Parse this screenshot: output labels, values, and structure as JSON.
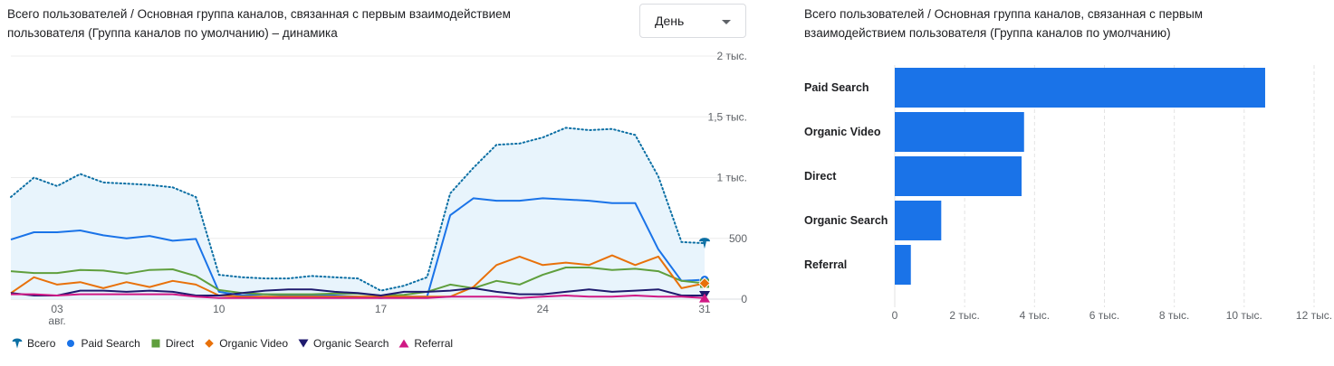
{
  "line_chart": {
    "title": "Всего пользователей / Основная группа каналов, связанная с первым взаимодействием пользователя (Группа каналов по умолчанию) – динамика",
    "granularity": {
      "selected": "День"
    }
  },
  "bar_chart": {
    "title": "Всего пользователей / Основная группа каналов, связанная с первым взаимодействием пользователя (Группа каналов по умолчанию)"
  },
  "chart_data": [
    {
      "type": "line",
      "title": "Всего пользователей / Основная группа каналов, связанная с первым взаимодействием пользователя (Группа каналов по умолчанию) – динамика",
      "x": [
        "2024-08-01",
        "2024-08-02",
        "2024-08-03",
        "2024-08-04",
        "2024-08-05",
        "2024-08-06",
        "2024-08-07",
        "2024-08-08",
        "2024-08-09",
        "2024-08-10",
        "2024-08-11",
        "2024-08-12",
        "2024-08-13",
        "2024-08-14",
        "2024-08-15",
        "2024-08-16",
        "2024-08-17",
        "2024-08-18",
        "2024-08-19",
        "2024-08-20",
        "2024-08-21",
        "2024-08-22",
        "2024-08-23",
        "2024-08-24",
        "2024-08-25",
        "2024-08-26",
        "2024-08-27",
        "2024-08-28",
        "2024-08-29",
        "2024-08-30",
        "2024-08-31"
      ],
      "x_ticks": [
        {
          "date": "2024-08-03",
          "label": "03",
          "sublabel": "авг."
        },
        {
          "date": "2024-08-10",
          "label": "10"
        },
        {
          "date": "2024-08-17",
          "label": "17"
        },
        {
          "date": "2024-08-24",
          "label": "24"
        },
        {
          "date": "2024-08-31",
          "label": "31"
        }
      ],
      "y_ticks": [
        {
          "value": 0,
          "label": "0"
        },
        {
          "value": 500,
          "label": "500"
        },
        {
          "value": 1000,
          "label": "1 тыс."
        },
        {
          "value": 1500,
          "label": "1,5 тыс."
        },
        {
          "value": 2000,
          "label": "2 тыс."
        }
      ],
      "ylim": [
        0,
        2000
      ],
      "grid": true,
      "legend_position": "bottom-left",
      "series": [
        {
          "name": "Всего",
          "color": "#1a73e8",
          "style": "dotted-area",
          "marker": "balloon",
          "values": [
            840,
            1000,
            930,
            1030,
            960,
            950,
            940,
            920,
            840,
            200,
            180,
            170,
            170,
            190,
            180,
            170,
            70,
            110,
            180,
            870,
            1080,
            1270,
            1280,
            1330,
            1410,
            1390,
            1400,
            1350,
            1010,
            470,
            460
          ]
        },
        {
          "name": "Paid Search",
          "color": "#1a73e8",
          "style": "solid",
          "marker": "circle",
          "values": [
            490,
            550,
            550,
            565,
            525,
            500,
            520,
            480,
            495,
            60,
            30,
            40,
            30,
            30,
            30,
            20,
            10,
            20,
            20,
            690,
            830,
            810,
            810,
            830,
            820,
            810,
            790,
            790,
            410,
            150,
            160
          ]
        },
        {
          "name": "Direct",
          "color": "#5f9f3d",
          "style": "solid",
          "marker": "square",
          "values": [
            230,
            215,
            215,
            240,
            235,
            210,
            240,
            245,
            190,
            75,
            50,
            40,
            40,
            40,
            45,
            45,
            30,
            35,
            60,
            120,
            90,
            150,
            120,
            200,
            260,
            260,
            240,
            250,
            230,
            150,
            130
          ]
        },
        {
          "name": "Organic Video",
          "color": "#e8710a",
          "style": "solid",
          "marker": "diamond",
          "values": [
            50,
            180,
            120,
            140,
            90,
            140,
            100,
            150,
            120,
            30,
            20,
            20,
            20,
            20,
            20,
            20,
            20,
            20,
            20,
            20,
            100,
            280,
            350,
            280,
            300,
            280,
            360,
            280,
            350,
            90,
            130
          ]
        },
        {
          "name": "Organic Search",
          "color": "#1f1a6e",
          "style": "solid",
          "marker": "triangle-down",
          "values": [
            50,
            30,
            30,
            70,
            70,
            60,
            70,
            60,
            30,
            30,
            50,
            70,
            80,
            80,
            60,
            50,
            30,
            60,
            60,
            70,
            90,
            60,
            40,
            40,
            60,
            80,
            60,
            70,
            80,
            30,
            30
          ]
        },
        {
          "name": "Referral",
          "color": "#d01884",
          "style": "solid",
          "marker": "triangle-up",
          "values": [
            40,
            40,
            30,
            40,
            40,
            40,
            40,
            40,
            20,
            10,
            10,
            10,
            10,
            10,
            10,
            10,
            10,
            10,
            10,
            20,
            20,
            20,
            10,
            20,
            30,
            20,
            20,
            30,
            20,
            20,
            10
          ]
        }
      ]
    },
    {
      "type": "bar",
      "orientation": "horizontal",
      "title": "Всего пользователей / Основная группа каналов, связанная с первым взаимодействием пользователя (Группа каналов по умолчанию)",
      "categories": [
        "Paid Search",
        "Organic Video",
        "Direct",
        "Organic Search",
        "Referral"
      ],
      "values": [
        10600,
        3700,
        3630,
        1330,
        460
      ],
      "color": "#1a73e8",
      "xlim": [
        0,
        12000
      ],
      "x_ticks": [
        {
          "value": 0,
          "label": "0"
        },
        {
          "value": 2000,
          "label": "2 тыс."
        },
        {
          "value": 4000,
          "label": "4 тыс."
        },
        {
          "value": 6000,
          "label": "6 тыс."
        },
        {
          "value": 8000,
          "label": "8 тыс."
        },
        {
          "value": 10000,
          "label": "10 тыс."
        },
        {
          "value": 12000,
          "label": "12 тыс."
        }
      ],
      "grid": true
    }
  ]
}
